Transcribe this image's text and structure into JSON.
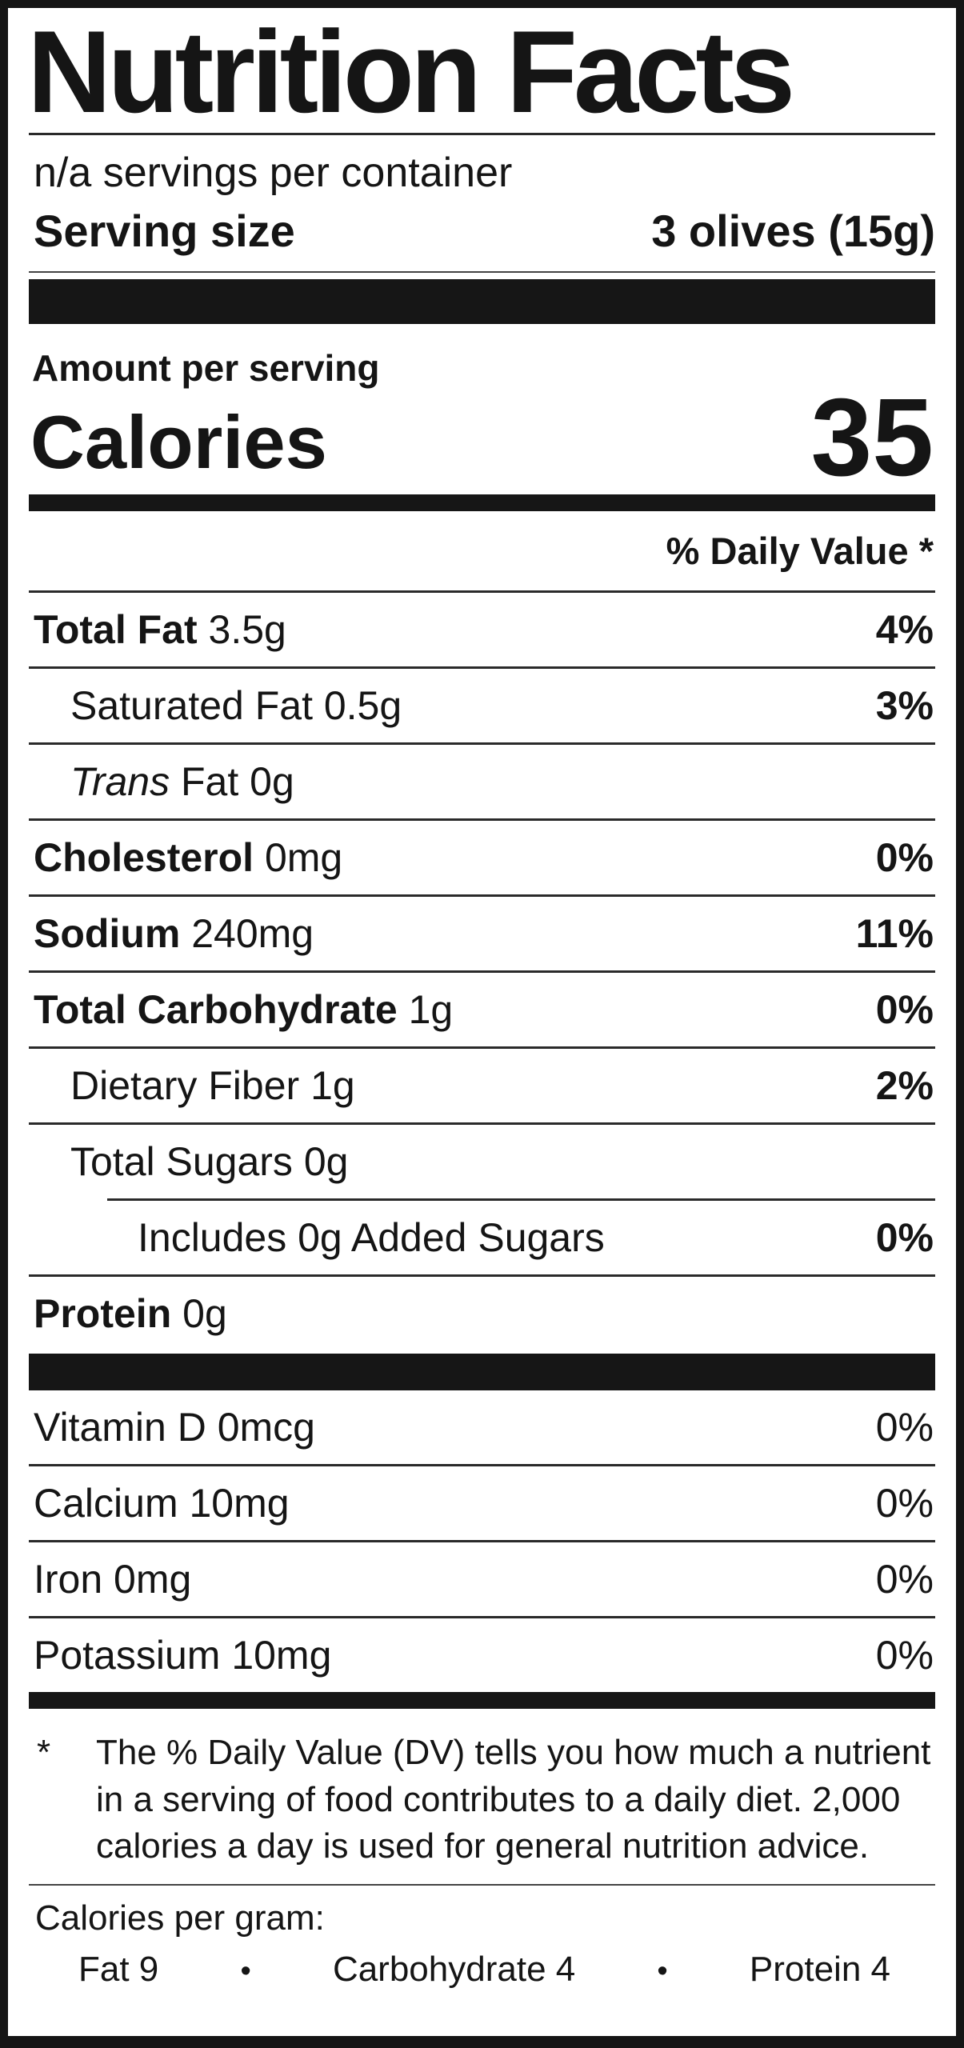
{
  "label": {
    "title": "Nutrition Facts",
    "servings_per_container": "n/a servings per container",
    "serving_size_label": "Serving size",
    "serving_size_value": "3 olives (15g)",
    "amount_per_serving": "Amount per serving",
    "calories_label": "Calories",
    "calories_value": "35",
    "daily_value_header": "% Daily Value *",
    "main_rows": [
      {
        "bold": "Total Fat",
        "text": " 3.5g",
        "percent": "4%",
        "bold_percent": true,
        "indent": 0
      },
      {
        "text": "Saturated Fat 0.5g",
        "percent": "3%",
        "bold_percent": true,
        "indent": 1
      },
      {
        "italic": "Trans",
        "text": " Fat 0g",
        "percent": "",
        "indent": 1
      },
      {
        "bold": "Cholesterol",
        "text": " 0mg",
        "percent": "0%",
        "bold_percent": true,
        "indent": 0
      },
      {
        "bold": "Sodium",
        "text": " 240mg",
        "percent": "11%",
        "bold_percent": true,
        "indent": 0
      },
      {
        "bold": "Total Carbohydrate",
        "text": " 1g",
        "percent": "0%",
        "bold_percent": true,
        "indent": 0
      },
      {
        "text": "Dietary Fiber 1g",
        "percent": "2%",
        "bold_percent": true,
        "indent": 1
      },
      {
        "text": "Total Sugars 0g",
        "percent": "",
        "indent": 1
      },
      {
        "text": "Includes 0g Added Sugars",
        "percent": "0%",
        "bold_percent": true,
        "indent": 2,
        "rule_indented": true
      },
      {
        "bold": "Protein",
        "text": " 0g",
        "percent": "",
        "indent": 0
      }
    ],
    "vitamin_rows": [
      {
        "text": "Vitamin D 0mcg",
        "percent": "0%",
        "no_top_rule": true
      },
      {
        "text": "Calcium 10mg",
        "percent": "0%"
      },
      {
        "text": "Iron 0mg",
        "percent": "0%"
      },
      {
        "text": "Potassium 10mg",
        "percent": "0%"
      }
    ],
    "footnote_marker": "*",
    "footnote_text": "The % Daily Value (DV) tells you how much a nutrient in a serving of food contributes to a daily diet. 2,000 calories a day is used for general nutrition advice.",
    "calories_per_gram_label": "Calories per gram:",
    "calories_per_gram_items": [
      "Fat 9",
      "•",
      "Carbohydrate 4",
      "•",
      "Protein 4"
    ]
  }
}
